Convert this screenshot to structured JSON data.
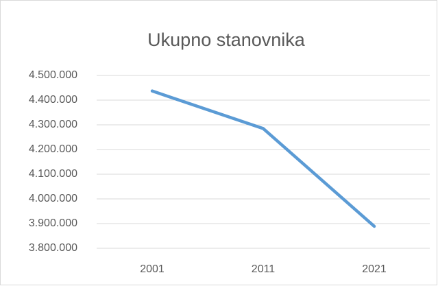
{
  "chart_data": {
    "type": "line",
    "title": "Ukupno stanovnika",
    "categories": [
      "2001",
      "2011",
      "2021"
    ],
    "series": [
      {
        "name": "Ukupno stanovnika",
        "color": "#5b9bd5",
        "values": [
          4437000,
          4285000,
          3889000
        ]
      }
    ],
    "ylim": [
      3800000,
      4500000
    ],
    "yticks": [
      {
        "value": 3800000,
        "label": "3.800.000"
      },
      {
        "value": 3900000,
        "label": "3.900.000"
      },
      {
        "value": 4000000,
        "label": "4.000.000"
      },
      {
        "value": 4100000,
        "label": "4.100.000"
      },
      {
        "value": 4200000,
        "label": "4.200.000"
      },
      {
        "value": 4300000,
        "label": "4.300.000"
      },
      {
        "value": 4400000,
        "label": "4.400.000"
      },
      {
        "value": 4500000,
        "label": "4.500.000"
      }
    ],
    "grid": true
  }
}
